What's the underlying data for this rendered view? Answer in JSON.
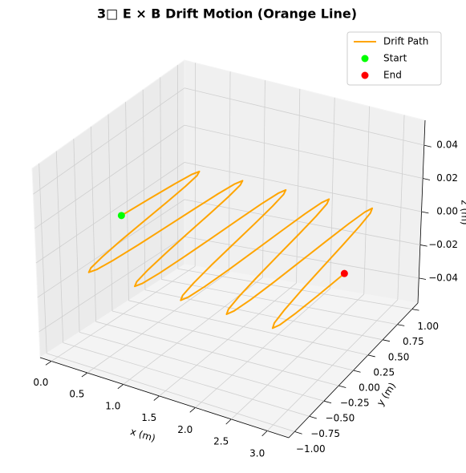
{
  "chart_data": {
    "type": "line3d",
    "title": "3□ E × B Drift Motion (Orange Line)",
    "xlabel": "x (m)",
    "ylabel": "y (m)",
    "zlabel": "z (m)",
    "xlim": [
      -0.157,
      3.299
    ],
    "ylim": [
      -1.1,
      1.1
    ],
    "zlim": [
      -0.055,
      0.055
    ],
    "xticks": [
      {
        "value": 0,
        "label": "0.0"
      },
      0.5,
      {
        "value": 1,
        "label": "1.0"
      },
      1.5,
      {
        "value": 2,
        "label": "2.0"
      },
      2.5,
      {
        "value": 3,
        "label": "3.0"
      }
    ],
    "yticks": [
      {
        "value": -1,
        "label": "−1.00"
      },
      {
        "value": -0.75,
        "label": "−0.75"
      },
      {
        "value": -0.5,
        "label": "−0.50"
      },
      {
        "value": -0.25,
        "label": "−0.25"
      },
      {
        "value": 0,
        "label": "0.00"
      },
      0.25,
      {
        "value": 0.5,
        "label": "0.50"
      },
      0.75,
      {
        "value": 1,
        "label": "1.00"
      }
    ],
    "zticks": [
      {
        "value": -0.04,
        "label": "−0.04"
      },
      {
        "value": -0.02,
        "label": "−0.02"
      },
      {
        "value": 0,
        "label": "0.00"
      },
      0.02,
      0.04
    ],
    "grid": true,
    "legend": "upper right",
    "series": [
      {
        "name": "Drift Path",
        "type": "line",
        "color": "#ffa500",
        "x": [
          0,
          0.039,
          0.079,
          0.118,
          0.157,
          0.196,
          0.236,
          0.275,
          0.314,
          0.353,
          0.393,
          0.432,
          0.471,
          0.511,
          0.55,
          0.589,
          0.628,
          0.668,
          0.707,
          0.746,
          0.785,
          0.825,
          0.864,
          0.903,
          0.942,
          0.982,
          1.021,
          1.06,
          1.1,
          1.139,
          1.178,
          1.217,
          1.257,
          1.296,
          1.335,
          1.374,
          1.414,
          1.453,
          1.492,
          1.532,
          1.571,
          1.61,
          1.649,
          1.689,
          1.728,
          1.767,
          1.806,
          1.846,
          1.885,
          1.924,
          1.963,
          2.003,
          2.042,
          2.081,
          2.121,
          2.16,
          2.199,
          2.238,
          2.278,
          2.317,
          2.356,
          2.395,
          2.435,
          2.474,
          2.513,
          2.553,
          2.592,
          2.631,
          2.67,
          2.71,
          2.749,
          2.788,
          2.827,
          2.867,
          2.906,
          2.945,
          2.985,
          3.024,
          3.063,
          3.102,
          3.142
        ],
        "y": [
          0,
          0.383,
          0.707,
          0.924,
          1,
          0.924,
          0.707,
          0.383,
          0,
          -0.383,
          -0.707,
          -0.924,
          -1,
          -0.924,
          -0.707,
          -0.383,
          0,
          0.383,
          0.707,
          0.924,
          1,
          0.924,
          0.707,
          0.383,
          0,
          -0.383,
          -0.707,
          -0.924,
          -1,
          -0.924,
          -0.707,
          -0.383,
          0,
          0.383,
          0.707,
          0.924,
          1,
          0.924,
          0.707,
          0.383,
          0,
          -0.383,
          -0.707,
          -0.924,
          -1,
          -0.924,
          -0.707,
          -0.383,
          0,
          0.383,
          0.707,
          0.924,
          1,
          0.924,
          0.707,
          0.383,
          0,
          -0.383,
          -0.707,
          -0.924,
          -1,
          -0.924,
          -0.707,
          -0.383,
          0,
          0.383,
          0.707,
          0.924,
          1,
          0.924,
          0.707,
          0.383,
          0,
          -0.383,
          -0.707,
          -0.924,
          -1,
          -0.924,
          -0.707,
          -0.383,
          0
        ],
        "z": [
          0,
          0,
          0,
          0,
          0,
          0,
          0,
          0,
          0,
          0,
          0,
          0,
          0,
          0,
          0,
          0,
          0,
          0,
          0,
          0,
          0,
          0,
          0,
          0,
          0,
          0,
          0,
          0,
          0,
          0,
          0,
          0,
          0,
          0,
          0,
          0,
          0,
          0,
          0,
          0,
          0,
          0,
          0,
          0,
          0,
          0,
          0,
          0,
          0,
          0,
          0,
          0,
          0,
          0,
          0,
          0,
          0,
          0,
          0,
          0,
          0,
          0,
          0,
          0,
          0,
          0,
          0,
          0,
          0,
          0,
          0,
          0,
          0,
          0,
          0,
          0,
          0,
          0,
          0,
          0,
          0
        ]
      },
      {
        "name": "Start",
        "type": "scatter",
        "color": "#00ff00",
        "x": [
          0
        ],
        "y": [
          0
        ],
        "z": [
          0
        ]
      },
      {
        "name": "End",
        "type": "scatter",
        "color": "#ff0000",
        "x": [
          3.142
        ],
        "y": [
          0
        ],
        "z": [
          0
        ]
      }
    ]
  }
}
